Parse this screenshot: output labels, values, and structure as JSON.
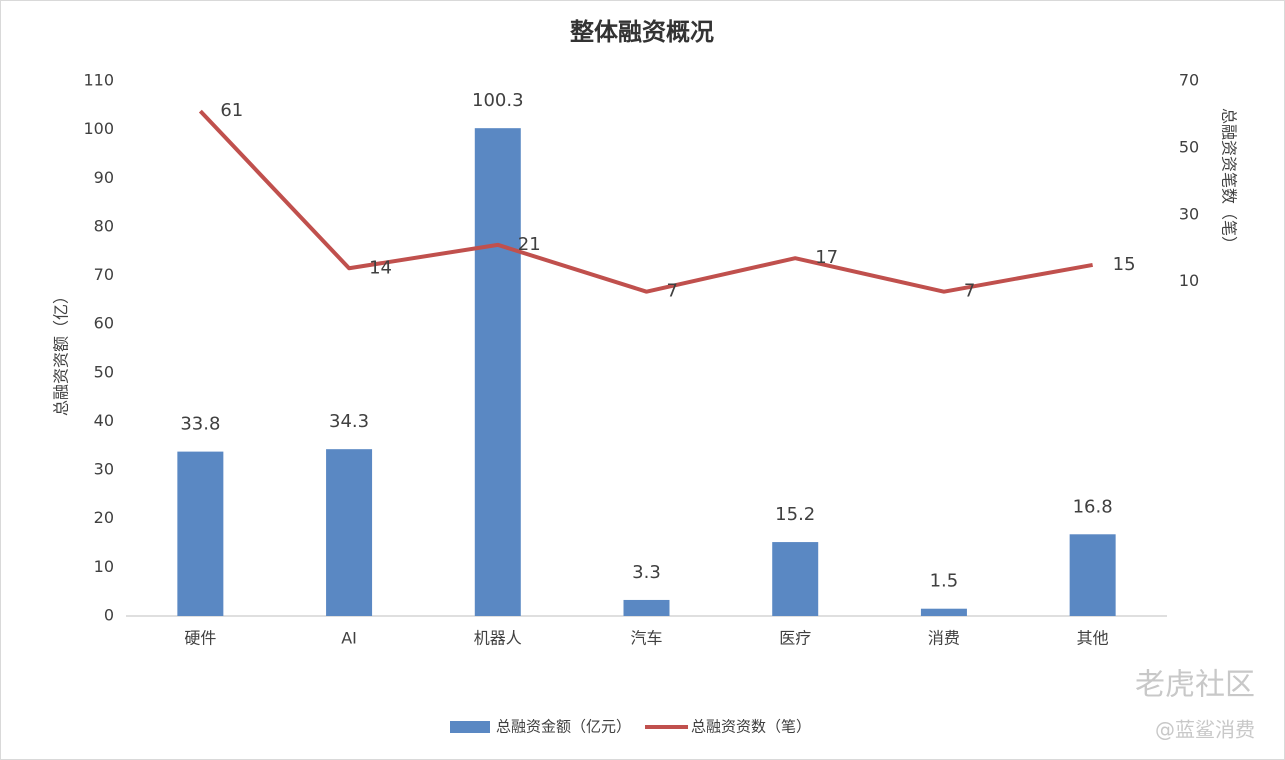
{
  "chart_data": {
    "type": "combo",
    "title": "整体融资概况",
    "categories": [
      "硬件",
      "AI",
      "机器人",
      "汽车",
      "医疗",
      "消费",
      "其他"
    ],
    "series": [
      {
        "name": "总融资金额（亿元）",
        "type": "bar",
        "color": "#5a88c3",
        "values": [
          33.8,
          34.3,
          100.3,
          3.3,
          15.2,
          1.5,
          16.8
        ]
      },
      {
        "name": "总融资资数（笔）",
        "type": "line",
        "axis": "y2",
        "color": "#c0504d",
        "values": [
          61,
          14,
          21,
          7,
          17,
          7,
          15
        ]
      }
    ],
    "y_label": "总融资资额（亿）",
    "y2_label": "总融资资笔数（笔）",
    "ylim": [
      0,
      110
    ],
    "yticks": [
      0,
      10,
      20,
      30,
      40,
      50,
      60,
      70,
      80,
      90,
      100,
      110
    ],
    "y2lim": [
      -90,
      70
    ],
    "y2ticks": [
      10,
      30,
      50,
      70
    ],
    "grid": false,
    "legend": "bottom",
    "watermarks": [
      "老虎社区",
      "@蓝鲨消费"
    ]
  }
}
